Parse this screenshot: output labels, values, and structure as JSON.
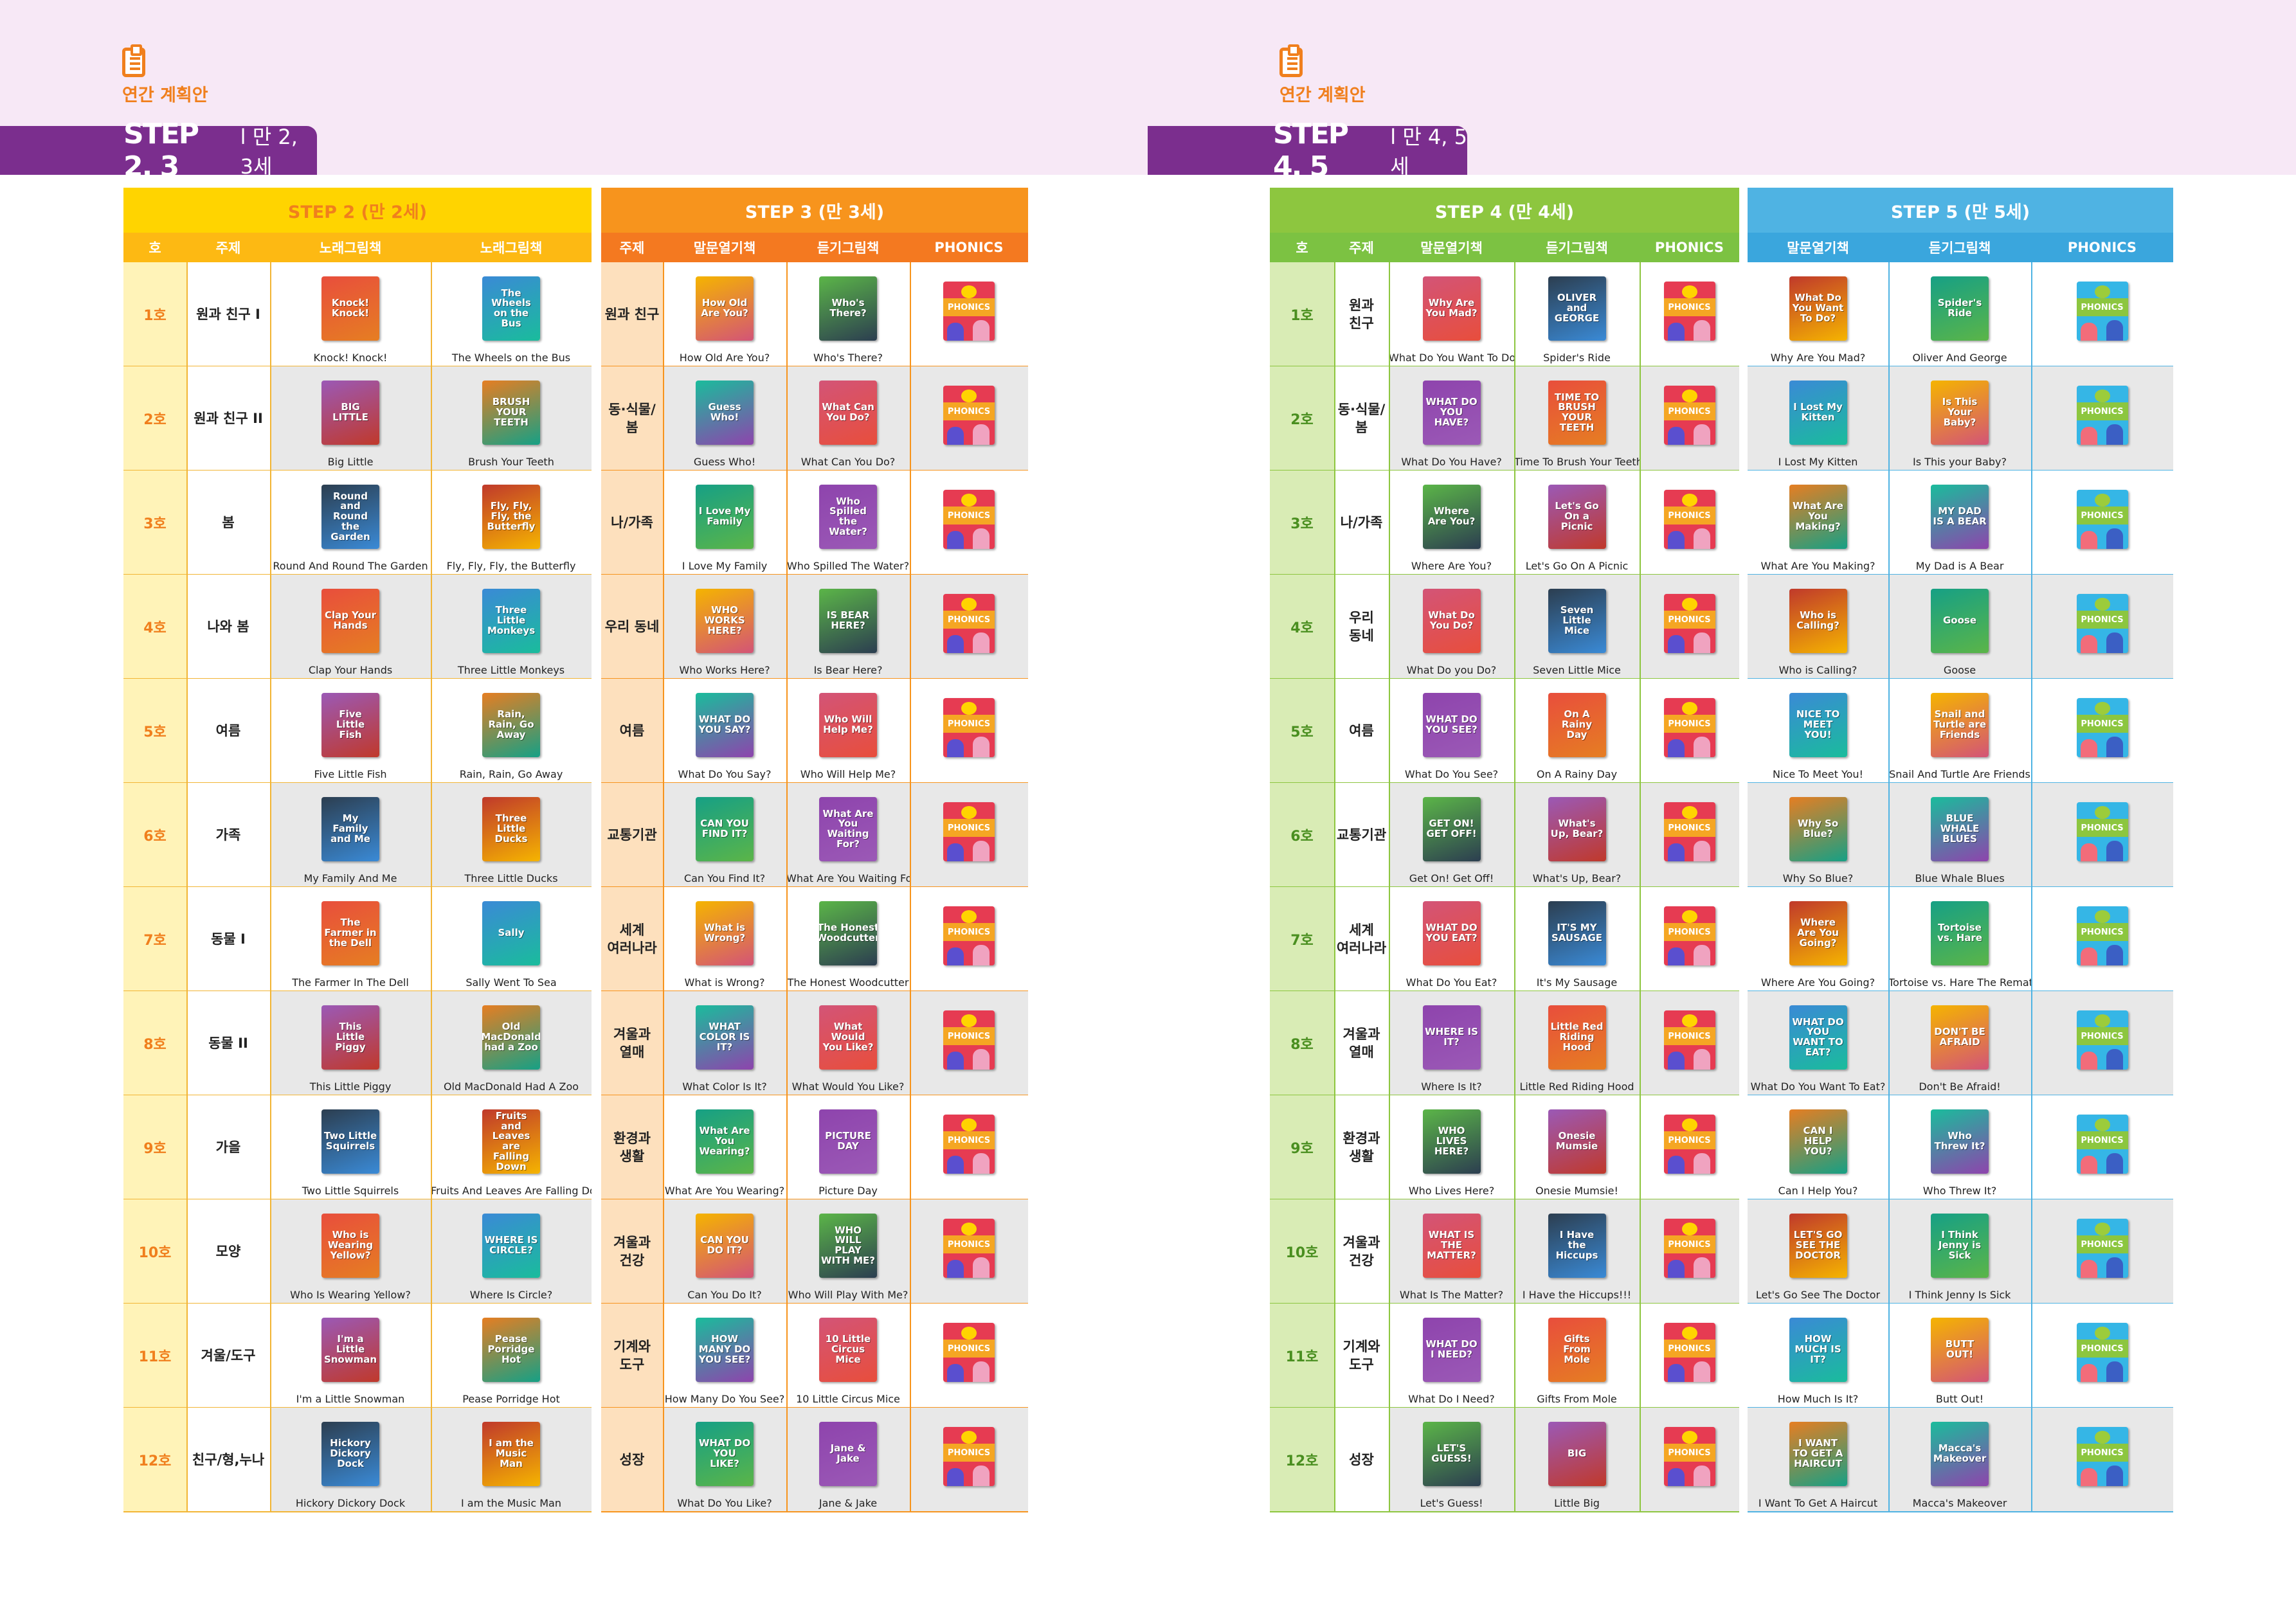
{
  "left": {
    "plan_label": "연간 계획안",
    "banner_big": "STEP 2, 3",
    "banner_small": "l 만 2, 3세",
    "sections": [
      {
        "title": "STEP 2 (만 2세)",
        "cols": [
          "호",
          "주제",
          "노래그림책",
          "노래그림책"
        ]
      },
      {
        "title": "STEP 3 (만 3세)",
        "cols": [
          "주제",
          "말문열기책",
          "듣기그림책",
          "PHONICS"
        ]
      }
    ],
    "rows": [
      {
        "ho": "1호",
        "t2": "원과 친구 I",
        "s2a": "Knock! Knock!",
        "s2b": "The Wheels on the Bus",
        "t3": "원과 친구",
        "s3a": "How Old Are You?",
        "s3b": "Who's There?"
      },
      {
        "ho": "2호",
        "t2": "원과 친구 II",
        "s2a": "Big Little",
        "s2b": "Brush Your Teeth",
        "t3": "동·식물/\n봄",
        "s3a": "Guess Who!",
        "s3b": "What Can You Do?"
      },
      {
        "ho": "3호",
        "t2": "봄",
        "s2a": "Round And Round The Garden",
        "s2b": "Fly, Fly, Fly, the Butterfly",
        "t3": "나/가족",
        "s3a": "I Love My Family",
        "s3b": "Who Spilled The Water?"
      },
      {
        "ho": "4호",
        "t2": "나와 봄",
        "s2a": "Clap Your Hands",
        "s2b": "Three Little Monkeys",
        "t3": "우리 동네",
        "s3a": "Who Works Here?",
        "s3b": "Is Bear Here?"
      },
      {
        "ho": "5호",
        "t2": "여름",
        "s2a": "Five Little Fish",
        "s2b": "Rain, Rain, Go Away",
        "t3": "여름",
        "s3a": "What Do You Say?",
        "s3b": "Who Will Help Me?"
      },
      {
        "ho": "6호",
        "t2": "가족",
        "s2a": "My Family And Me",
        "s2b": "Three Little Ducks",
        "t3": "교통기관",
        "s3a": "Can You Find It?",
        "s3b": "What Are You Waiting For?"
      },
      {
        "ho": "7호",
        "t2": "동물 I",
        "s2a": "The Farmer In The Dell",
        "s2b": "Sally Went To Sea",
        "t3": "세계\n여러나라",
        "s3a": "What is Wrong?",
        "s3b": "The Honest Woodcutter"
      },
      {
        "ho": "8호",
        "t2": "동물 II",
        "s2a": "This Little Piggy",
        "s2b": "Old MacDonald Had A Zoo",
        "t3": "겨울과\n열매",
        "s3a": "What Color Is It?",
        "s3b": "What Would You Like?"
      },
      {
        "ho": "9호",
        "t2": "가을",
        "s2a": "Two Little Squirrels",
        "s2b": "Fruits And Leaves Are Falling Down",
        "t3": "환경과\n생활",
        "s3a": "What Are You Wearing?",
        "s3b": "Picture Day"
      },
      {
        "ho": "10호",
        "t2": "모양",
        "s2a": "Who Is Wearing Yellow?",
        "s2b": "Where Is Circle?",
        "t3": "겨울과\n건강",
        "s3a": "Can You Do It?",
        "s3b": "Who Will Play With Me?"
      },
      {
        "ho": "11호",
        "t2": "겨울/도구",
        "s2a": "I'm a Little Snowman",
        "s2b": "Pease Porridge Hot",
        "t3": "기계와\n도구",
        "s3a": "How Many Do You See?",
        "s3b": "10 Little Circus Mice"
      },
      {
        "ho": "12호",
        "t2": "친구/형,누나",
        "s2a": "Hickory Dickory Dock",
        "s2b": "I am the Music Man",
        "t3": "성장",
        "s3a": "What Do You Like?",
        "s3b": "Jane & Jake"
      }
    ]
  },
  "right": {
    "plan_label": "연간 계획안",
    "banner_big": "STEP 4, 5",
    "banner_small": "l 만 4, 5세",
    "sections": [
      {
        "title": "STEP 4 (만 4세)",
        "cols": [
          "호",
          "주제",
          "말문열기책",
          "듣기그림책",
          "PHONICS"
        ]
      },
      {
        "title": "STEP 5 (만 5세)",
        "cols": [
          "말문열기책",
          "듣기그림책",
          "PHONICS"
        ]
      }
    ],
    "rows": [
      {
        "ho": "1호",
        "t": "원과\n친구",
        "s4a": "What Do You Want To Do?",
        "s4b": "Spider's Ride",
        "s5a": "Why Are You Mad?",
        "s5b": "Oliver And George"
      },
      {
        "ho": "2호",
        "t": "동·식물/\n봄",
        "s4a": "What Do You Have?",
        "s4b": "Time To Brush Your Teeth!",
        "s5a": "I Lost My Kitten",
        "s5b": "Is This your Baby?"
      },
      {
        "ho": "3호",
        "t": "나/가족",
        "s4a": "Where Are You?",
        "s4b": "Let's Go On A Picnic",
        "s5a": "What Are You Making?",
        "s5b": "My Dad is A Bear"
      },
      {
        "ho": "4호",
        "t": "우리\n동네",
        "s4a": "What Do you Do?",
        "s4b": "Seven Little Mice",
        "s5a": "Who is Calling?",
        "s5b": "Goose"
      },
      {
        "ho": "5호",
        "t": "여름",
        "s4a": "What Do You See?",
        "s4b": "On A Rainy Day",
        "s5a": "Nice To Meet You!",
        "s5b": "Snail And Turtle Are Friends"
      },
      {
        "ho": "6호",
        "t": "교통기관",
        "s4a": "Get On! Get Off!",
        "s4b": "What's Up, Bear?",
        "s5a": "Why So Blue?",
        "s5b": "Blue Whale Blues"
      },
      {
        "ho": "7호",
        "t": "세계\n여러나라",
        "s4a": "What Do You Eat?",
        "s4b": "It's My Sausage",
        "s5a": "Where Are You Going?",
        "s5b": "Tortoise vs. Hare The Rematch"
      },
      {
        "ho": "8호",
        "t": "겨울과\n열매",
        "s4a": "Where Is It?",
        "s4b": "Little Red Riding Hood",
        "s5a": "What Do You Want To Eat?",
        "s5b": "Don't Be Afraid!"
      },
      {
        "ho": "9호",
        "t": "환경과\n생활",
        "s4a": "Who Lives Here?",
        "s4b": "Onesie Mumsie!",
        "s5a": "Can I Help You?",
        "s5b": "Who Threw It?"
      },
      {
        "ho": "10호",
        "t": "겨울과\n건강",
        "s4a": "What Is The Matter?",
        "s4b": "I Have the Hiccups!!!",
        "s5a": "Let's Go See The Doctor",
        "s5b": "I Think Jenny Is Sick"
      },
      {
        "ho": "11호",
        "t": "기계와\n도구",
        "s4a": "What Do I Need?",
        "s4b": "Gifts From Mole",
        "s5a": "How Much Is It?",
        "s5b": "Butt Out!"
      },
      {
        "ho": "12호",
        "t": "성장",
        "s4a": "Let's Guess!",
        "s4b": "Little Big",
        "s5a": "I Want To Get A Haircut",
        "s5b": "Macca's Makeover"
      }
    ]
  },
  "covers": {
    "text": {
      "l0a": "Knock! Knock!",
      "l0b": "The Wheels on the Bus",
      "l0c": "How Old Are You?",
      "l0d": "Who's There?",
      "l1a": "BIG LITTLE",
      "l1b": "BRUSH YOUR TEETH",
      "l1c": "Guess Who!",
      "l1d": "What Can You Do?",
      "l2a": "Round and Round the Garden",
      "l2b": "Fly, Fly, Fly, the Butterfly",
      "l2c": "I Love My Family",
      "l2d": "Who Spilled the Water?",
      "l3a": "Clap Your Hands",
      "l3b": "Three Little Monkeys",
      "l3c": "WHO WORKS HERE?",
      "l3d": "IS BEAR HERE?",
      "l4a": "Five Little Fish",
      "l4b": "Rain, Rain, Go Away",
      "l4c": "WHAT DO YOU SAY?",
      "l4d": "Who Will Help Me?",
      "l5a": "My Family and Me",
      "l5b": "Three Little Ducks",
      "l5c": "CAN YOU FIND IT?",
      "l5d": "What Are You Waiting For?",
      "l6a": "The Farmer in the Dell",
      "l6b": "Sally",
      "l6c": "What is Wrong?",
      "l6d": "The Honest Woodcutter",
      "l7a": "This Little Piggy",
      "l7b": "Old MacDonald had a Zoo",
      "l7c": "WHAT COLOR IS IT?",
      "l7d": "What Would You Like?",
      "l8a": "Two Little Squirrels",
      "l8b": "Fruits and Leaves are Falling Down",
      "l8c": "What Are You Wearing?",
      "l8d": "PICTURE DAY",
      "l9a": "Who is Wearing Yellow?",
      "l9b": "WHERE IS CIRCLE?",
      "l9c": "CAN YOU DO IT?",
      "l9d": "WHO WILL PLAY WITH ME?",
      "l10a": "I'm a Little Snowman",
      "l10b": "Pease Porridge Hot",
      "l10c": "HOW MANY DO YOU SEE?",
      "l10d": "10 Little Circus Mice",
      "l11a": "Hickory Dickory Dock",
      "l11b": "I am the Music Man",
      "l11c": "WHAT DO YOU LIKE?",
      "l11d": "Jane & Jake",
      "r0a": "Why Are You Mad?",
      "r0b": "OLIVER and GEORGE",
      "r0c": "What Do You Want To Do?",
      "r0d": "Spider's Ride",
      "r1a": "WHAT DO YOU HAVE?",
      "r1b": "TIME TO BRUSH YOUR TEETH",
      "r1c": "I Lost My Kitten",
      "r1d": "Is This Your Baby?",
      "r2a": "Where Are You?",
      "r2b": "Let's Go On a Picnic",
      "r2c": "What Are You Making?",
      "r2d": "MY DAD IS A BEAR",
      "r3a": "What Do You Do?",
      "r3b": "Seven Little Mice",
      "r3c": "Who is Calling?",
      "r3d": "Goose",
      "r4a": "WHAT DO YOU SEE?",
      "r4b": "On A Rainy Day",
      "r4c": "NICE TO MEET YOU!",
      "r4d": "Snail and Turtle are Friends",
      "r5a": "GET ON! GET OFF!",
      "r5b": "What's Up, Bear?",
      "r5c": "Why So Blue?",
      "r5d": "BLUE WHALE BLUES",
      "r6a": "WHAT DO YOU EAT?",
      "r6b": "IT'S MY SAUSAGE",
      "r6c": "Where Are You Going?",
      "r6d": "Tortoise vs. Hare",
      "r7a": "WHERE IS IT?",
      "r7b": "Little Red Riding Hood",
      "r7c": "WHAT DO YOU WANT TO EAT?",
      "r7d": "DON'T BE AFRAID",
      "r8a": "WHO LIVES HERE?",
      "r8b": "Onesie Mumsie",
      "r8c": "CAN I HELP YOU?",
      "r8d": "Who Threw It?",
      "r9a": "WHAT IS THE MATTER?",
      "r9b": "I Have the Hiccups",
      "r9c": "LET'S GO SEE THE DOCTOR",
      "r9d": "I Think Jenny is Sick",
      "r10a": "WHAT DO I NEED?",
      "r10b": "Gifts From Mole",
      "r10c": "HOW MUCH IS IT?",
      "r10d": "BUTT OUT!",
      "r11a": "LET'S GUESS!",
      "r11b": "BIG",
      "r11c": "I WANT TO GET A HAIRCUT",
      "r11d": "Macca's Makeover"
    },
    "phonics_label": "PHONICS"
  },
  "colors": {
    "step2": "#ffd400",
    "step2_col": "#fdb913",
    "step2_cell": "#fff3b8",
    "step2_line": "#f2b535",
    "step3": "#f7941d",
    "step3_col": "#f47920",
    "step3_cell": "#fde0bd",
    "step3_line": "#f7941d",
    "step4": "#8dc63f",
    "step4_col": "#7cc242",
    "step4_cell": "#d9ecb5",
    "step4_line": "#8dc63f",
    "step5": "#4fb3e3",
    "step5_col": "#3aa6dd",
    "step5_cell": "#cde8f7",
    "step5_line": "#4fb3e3",
    "grey": "#e8e8e8",
    "purple": "#7b2e8e",
    "orange": "#f07f1d"
  }
}
